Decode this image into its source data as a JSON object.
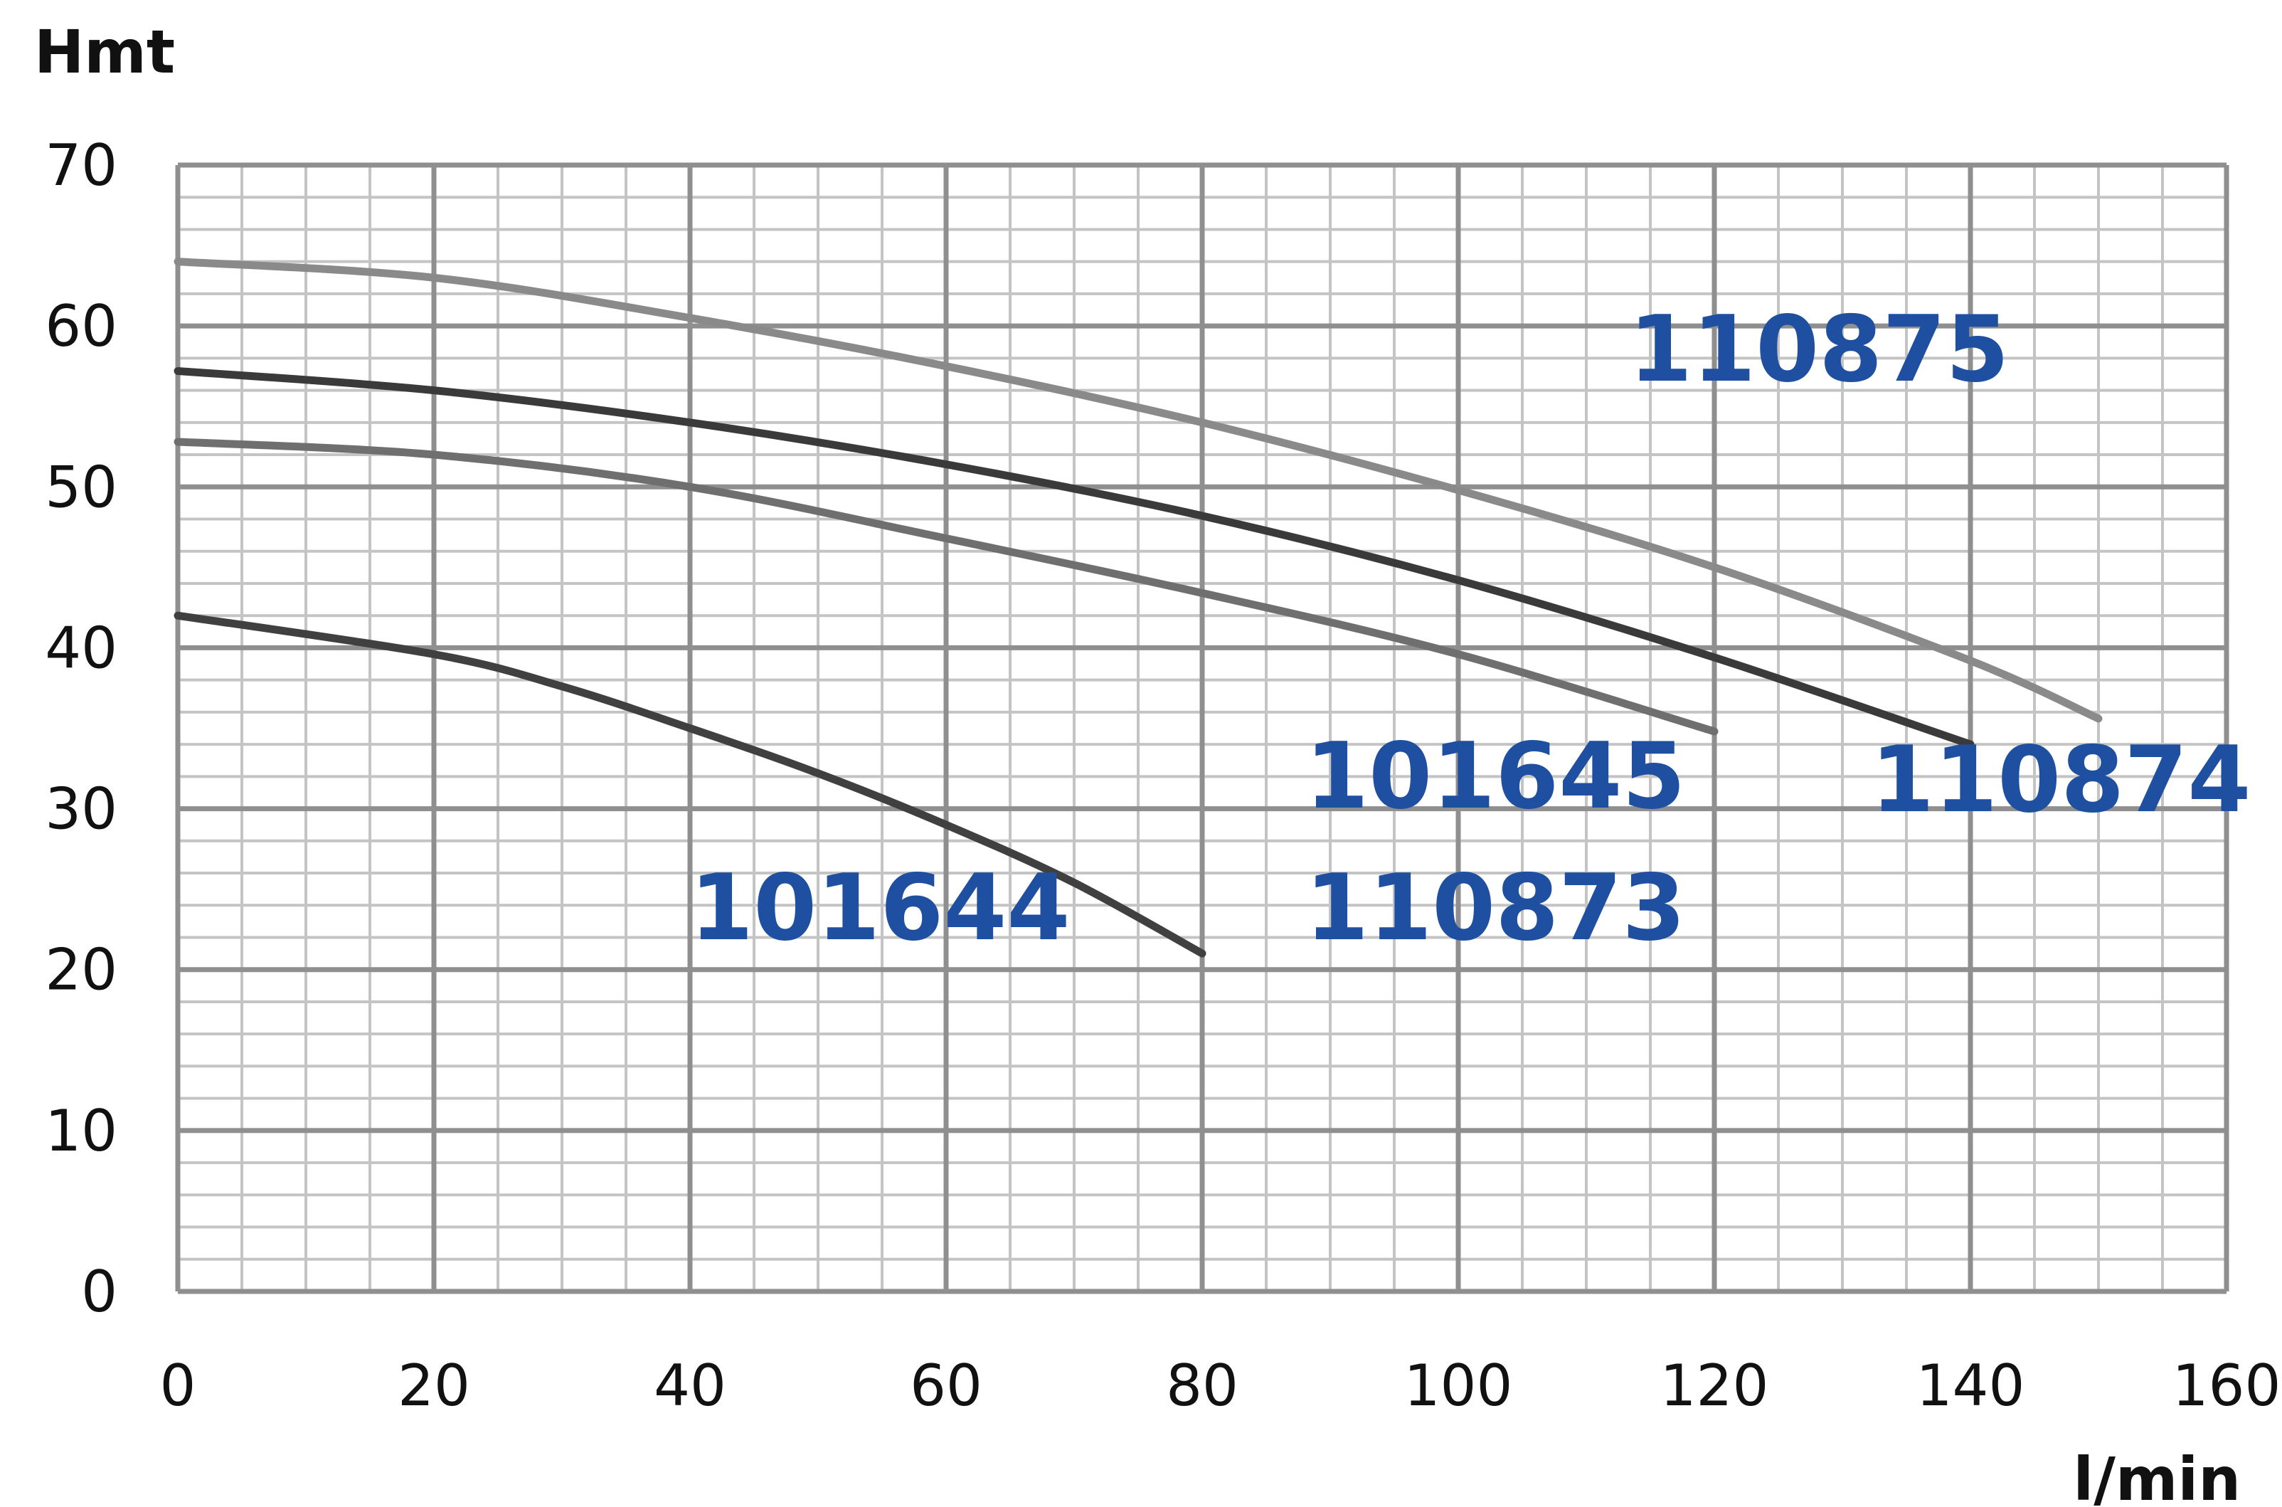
{
  "chart_data": {
    "type": "line",
    "xlabel": "l/min",
    "ylabel": "Hmt",
    "xlim": [
      0,
      160
    ],
    "ylim": [
      0,
      70
    ],
    "x_ticks": [
      "0",
      "20",
      "40",
      "60",
      "80",
      "100",
      "120",
      "140",
      "160"
    ],
    "y_ticks": [
      "0",
      "10",
      "20",
      "30",
      "40",
      "50",
      "60",
      "70"
    ],
    "grid": true,
    "label_color": "#1f4fa0",
    "series": [
      {
        "name": "110875",
        "color": "#8a8a8a",
        "x": [
          0,
          20,
          40,
          60,
          80,
          100,
          120,
          140,
          150
        ],
        "y": [
          64,
          63,
          60.5,
          57.5,
          54,
          49.8,
          45,
          39.2,
          35.6
        ]
      },
      {
        "name": "110874",
        "color": "#3a3a3a",
        "x": [
          0,
          20,
          40,
          60,
          80,
          100,
          120,
          140
        ],
        "y": [
          57.2,
          56,
          54,
          51.4,
          48.2,
          44.2,
          39.4,
          34
        ]
      },
      {
        "name": "101645",
        "name_secondary": "110873",
        "color": "#6f6f6f",
        "x": [
          0,
          20,
          40,
          60,
          80,
          100,
          120
        ],
        "y": [
          52.8,
          52,
          50,
          46.8,
          43.4,
          39.6,
          34.8
        ]
      },
      {
        "name": "101644",
        "color": "#404040",
        "x": [
          0,
          20,
          30,
          40,
          50,
          60,
          70,
          80
        ],
        "y": [
          42,
          39.6,
          37.6,
          35,
          32.2,
          29,
          25.4,
          21
        ]
      }
    ]
  }
}
